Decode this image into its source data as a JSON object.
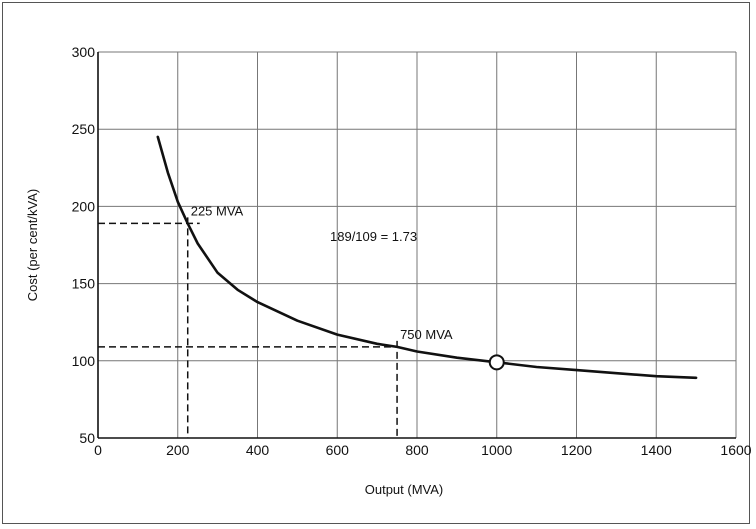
{
  "chart_data": {
    "type": "line",
    "title": "",
    "xlabel": "Output (MVA)",
    "ylabel": "Cost (per cent/kVA)",
    "xlim": [
      0,
      1600
    ],
    "ylim": [
      50,
      300
    ],
    "xticks": [
      0,
      200,
      400,
      600,
      800,
      1000,
      1200,
      1400,
      1600
    ],
    "yticks": [
      50,
      100,
      150,
      200,
      250,
      300
    ],
    "grid": true,
    "series": [
      {
        "x": [
          150,
          175,
          200,
          225,
          250,
          300,
          350,
          400,
          500,
          600,
          700,
          750,
          800,
          900,
          1000,
          1100,
          1200,
          1300,
          1400,
          1500
        ],
        "y": [
          245,
          222,
          203,
          189,
          176,
          157,
          146,
          138,
          126,
          117,
          111,
          109,
          106,
          102,
          99,
          96,
          94,
          92,
          90,
          89
        ]
      }
    ],
    "reference_points": [
      {
        "label": "225 MVA",
        "x": 225,
        "y": 189
      },
      {
        "label": "750 MVA",
        "x": 750,
        "y": 109
      }
    ],
    "marked_point": {
      "x": 1000,
      "y": 99
    },
    "annotation": "189/109 = 1.73",
    "colors": {
      "line": "#111111",
      "grid": "#777777",
      "background": "#ffffff"
    }
  }
}
